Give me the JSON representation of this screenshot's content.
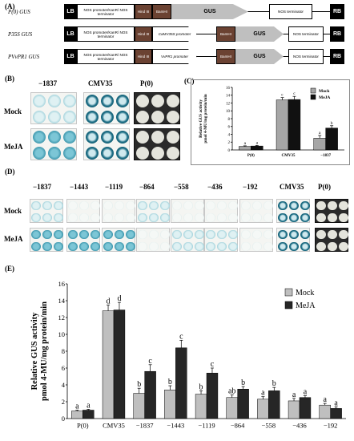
{
  "panel_A": {
    "label": "(A)",
    "constructs": [
      {
        "name": "P(0) GUS",
        "parts": [
          "LB",
          "NOS promoter/KanR/ NOS terminator",
          "Hind III",
          "BamHI",
          "GUS",
          "NOS terminator",
          "RB"
        ]
      },
      {
        "name": "P35S GUS",
        "parts": [
          "LB",
          "NOS promoter/KanR/ NOS terminator",
          "Hind III",
          "CaMV35S promoter",
          "BamHI",
          "GUS",
          "NOS terminator",
          "RB"
        ]
      },
      {
        "name": "PVvPR1 GUS",
        "parts": [
          "LB",
          "NOS promoter/KanR/ NOS terminator",
          "Hind III",
          "VvPR1 promoter",
          "BamHI",
          "GUS",
          "NOS terminator",
          "RB"
        ]
      }
    ]
  },
  "panel_B": {
    "label": "(B)",
    "columns": [
      "−1837",
      "CMV35",
      "P(0)"
    ],
    "rows": [
      "Mock",
      "MeJA"
    ]
  },
  "panel_C": {
    "label": "(C)",
    "chart_data": {
      "type": "bar",
      "categories": [
        "P(0)",
        "CMV35",
        "−1837"
      ],
      "series": [
        {
          "name": "Mock",
          "values": [
            0.9,
            12.8,
            3.0
          ],
          "errors": [
            0.15,
            0.6,
            0.7
          ],
          "letters": [
            "a",
            "c",
            "a"
          ]
        },
        {
          "name": "MeJA",
          "values": [
            1.0,
            12.9,
            5.6
          ],
          "errors": [
            0.15,
            0.8,
            0.6
          ],
          "letters": [
            "a",
            "c",
            "b"
          ]
        }
      ],
      "ylabel": "Relative GUS activity pmol 4-MU/mg protein/min",
      "ylim": [
        0,
        16
      ],
      "yticks": [
        0,
        2,
        4,
        6,
        8,
        10,
        12,
        14,
        16
      ],
      "legend": "top-right",
      "colors": {
        "Mock": "#a6a6a6",
        "MeJA": "#111111"
      }
    }
  },
  "panel_D": {
    "label": "(D)",
    "columns": [
      "−1837",
      "−1443",
      "−1119",
      "−864",
      "−558",
      "−436",
      "−192",
      "CMV35",
      "P(0)"
    ],
    "rows": [
      "Mock",
      "MeJA"
    ]
  },
  "panel_E": {
    "label": "(E)",
    "chart_data": {
      "type": "bar",
      "categories": [
        "P(0)",
        "CMV35",
        "−1837",
        "−1443",
        "−1119",
        "−864",
        "−558",
        "−436",
        "−192"
      ],
      "series": [
        {
          "name": "Mock",
          "values": [
            0.9,
            12.8,
            3.0,
            3.4,
            2.9,
            2.5,
            2.3,
            2.1,
            1.6
          ],
          "errors": [
            0.1,
            0.7,
            0.6,
            0.5,
            0.4,
            0.3,
            0.3,
            0.3,
            0.2
          ],
          "letters": [
            "a",
            "d",
            "b",
            "b",
            "b",
            "ab",
            "a",
            "a",
            "a"
          ]
        },
        {
          "name": "MeJA",
          "values": [
            1.0,
            12.9,
            5.6,
            8.4,
            5.4,
            3.5,
            3.3,
            2.5,
            1.2
          ],
          "errors": [
            0.1,
            0.9,
            0.8,
            0.9,
            0.6,
            0.3,
            0.4,
            0.2,
            0.2
          ],
          "letters": [
            "a",
            "d",
            "c",
            "c",
            "c",
            "b",
            "b",
            "a",
            "a"
          ]
        }
      ],
      "ylabel": "Relative GUS activity pmol 4-MU/mg protein/min",
      "ylim": [
        0,
        16
      ],
      "yticks": [
        0,
        2,
        4,
        6,
        8,
        10,
        12,
        14,
        16
      ],
      "legend": "top-right",
      "colors": {
        "Mock": "#bfbfbf",
        "MeJA": "#262626"
      }
    }
  }
}
